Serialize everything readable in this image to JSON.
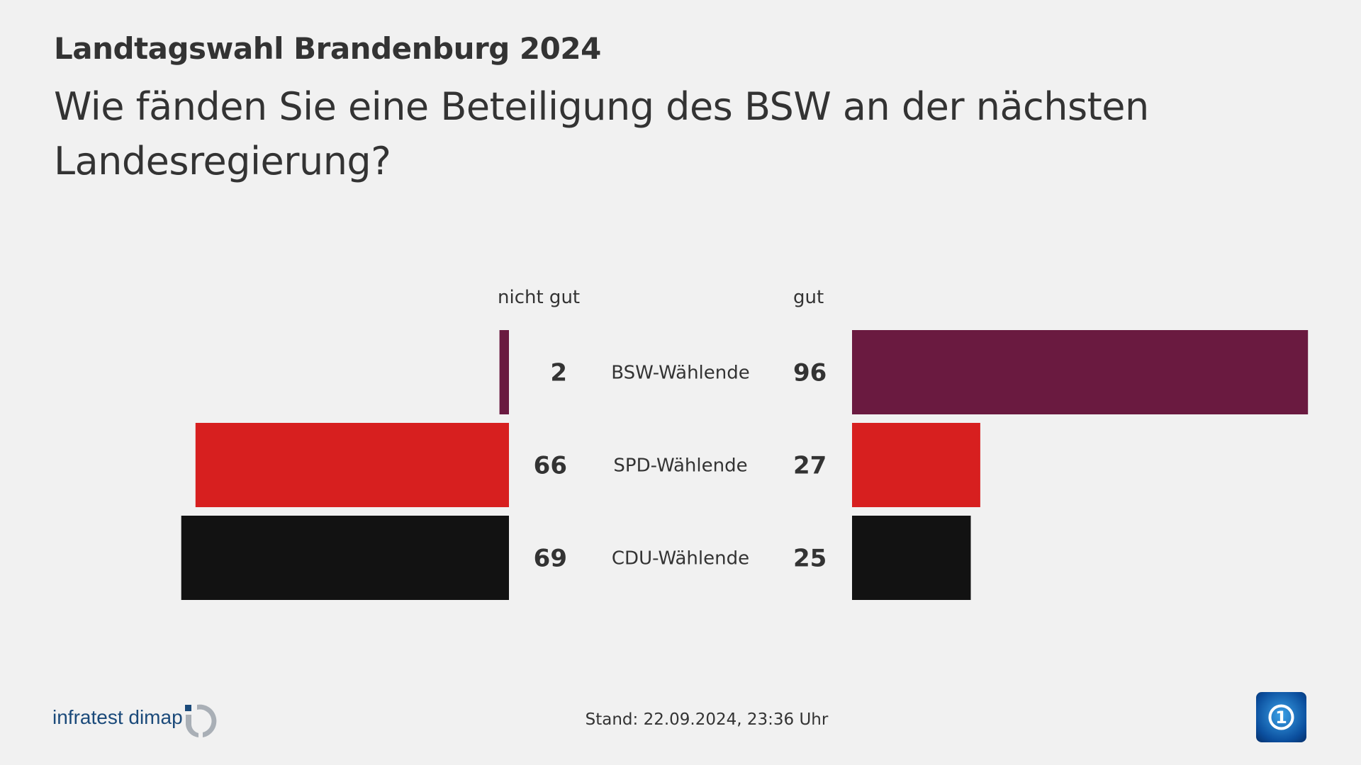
{
  "header": {
    "title": "Landtagswahl Brandenburg 2024",
    "subtitle": "Wie fänden Sie eine Beteiligung des BSW an der nächsten Landesregierung?"
  },
  "chart_data": {
    "type": "bar",
    "title": "Wie fänden Sie eine Beteiligung des BSW an der nächsten Landesregierung?",
    "categories": [
      "BSW-Wählende",
      "SPD-Wählende",
      "CDU-Wählende"
    ],
    "series": [
      {
        "name": "nicht gut",
        "values": [
          2,
          66,
          69
        ]
      },
      {
        "name": "gut",
        "values": [
          96,
          27,
          25
        ]
      }
    ],
    "colors": [
      "#6a1a40",
      "#d71f1f",
      "#121212"
    ],
    "xlim": [
      0,
      100
    ]
  },
  "footer": {
    "stand": "Stand:  22.09.2024, 23:36 Uhr",
    "logo": "infratest dimap",
    "ard_logo": "1"
  }
}
